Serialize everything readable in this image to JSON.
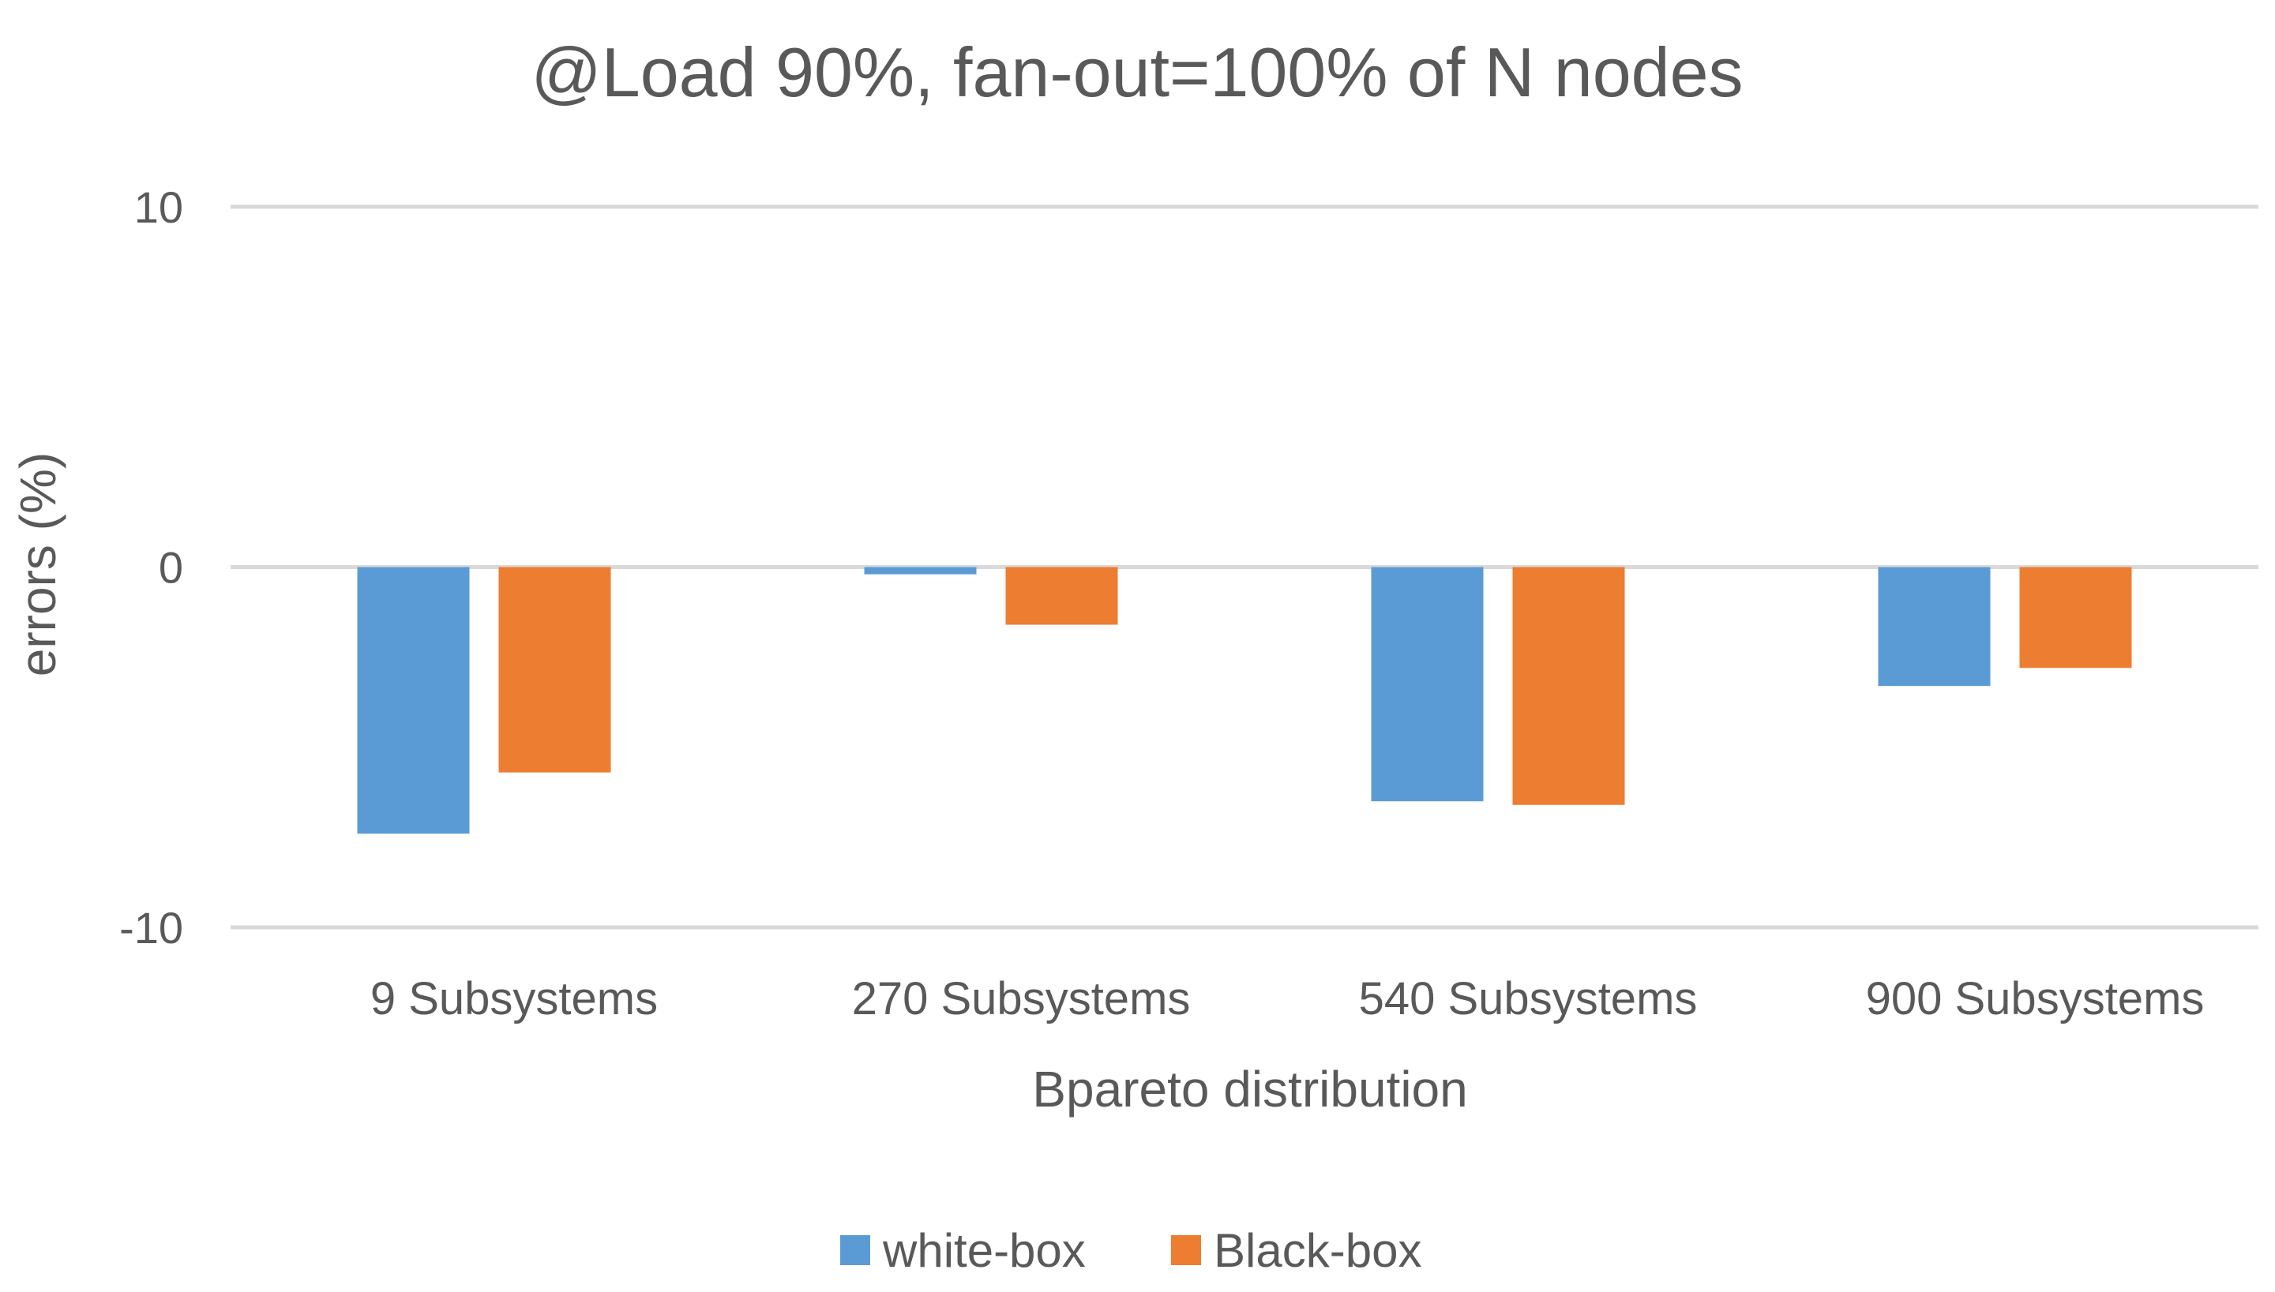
{
  "chart_data": {
    "type": "bar",
    "title": "@Load 90%, fan-out=100% of N nodes",
    "xlabel": "Bpareto distribution",
    "ylabel": "errors (%)",
    "categories": [
      "9 Subsystems",
      "270 Subsystems",
      "540 Subsystems",
      "900 Subsystems"
    ],
    "yticks": [
      "10",
      "0",
      "-10"
    ],
    "ylim": [
      -10,
      10
    ],
    "series": [
      {
        "name": "white-box",
        "color": "#5b9bd5",
        "values": [
          -7.4,
          -0.2,
          -6.5,
          -3.3
        ]
      },
      {
        "name": "Black-box",
        "color": "#ed7d31",
        "values": [
          -5.7,
          -1.6,
          -6.6,
          -2.8
        ]
      }
    ],
    "grid": true,
    "legend": "bottom"
  }
}
